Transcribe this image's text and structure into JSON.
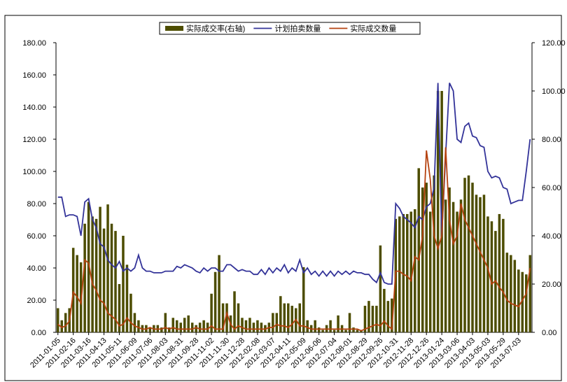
{
  "chart_data": {
    "type": "bar-line",
    "series": [
      {
        "name": "实际成交率(右轴)",
        "color": "#4d4d00",
        "axis": "y2",
        "kind": "bar",
        "values": [
          10,
          5,
          8,
          10,
          35,
          32,
          29,
          45,
          54,
          48,
          47,
          52,
          43,
          53,
          45,
          42,
          20,
          40,
          28,
          16,
          8,
          5,
          3,
          3,
          2,
          3,
          3,
          2,
          8,
          2,
          6,
          5,
          4,
          6,
          7,
          4,
          3,
          4,
          5,
          4,
          16,
          25,
          32,
          12,
          12,
          7,
          17,
          12,
          6,
          5,
          6,
          4,
          5,
          4,
          3,
          4,
          8,
          8,
          15,
          12,
          12,
          11,
          10,
          12,
          27,
          5,
          3,
          5,
          2,
          1,
          3,
          5,
          1,
          7,
          3,
          1,
          8,
          2,
          1,
          1,
          11,
          13,
          11,
          11,
          36,
          18,
          13,
          14,
          47,
          48,
          49,
          49,
          50,
          51,
          68,
          60,
          62,
          50,
          65,
          100,
          100,
          55,
          60,
          54,
          50,
          55,
          64,
          65,
          62,
          57,
          56,
          57,
          48,
          46,
          42,
          49,
          47,
          33,
          32,
          30,
          26,
          25,
          24,
          32
        ]
      },
      {
        "name": "计划拍卖数量",
        "color": "#333399",
        "kind": "line",
        "values": [
          84,
          84,
          72,
          73,
          73,
          72,
          60,
          81,
          83,
          70,
          65,
          55,
          53,
          45,
          42,
          40,
          44,
          38,
          40,
          38,
          40,
          48,
          40,
          38,
          38,
          37,
          37,
          37,
          38,
          38,
          38,
          41,
          40,
          42,
          41,
          40,
          38,
          37,
          40,
          38,
          40,
          40,
          38,
          38,
          42,
          42,
          40,
          38,
          39,
          38,
          38,
          36,
          36,
          39,
          36,
          40,
          37,
          40,
          38,
          42,
          37,
          40,
          38,
          45,
          37,
          40,
          36,
          38,
          35,
          38,
          35,
          38,
          35,
          38,
          36,
          38,
          36,
          38,
          37,
          37,
          36,
          36,
          33,
          31,
          37,
          31,
          30,
          30,
          80,
          77,
          72,
          70,
          68,
          65,
          72,
          70,
          78,
          80,
          90,
          155,
          60,
          110,
          155,
          150,
          120,
          118,
          128,
          130,
          122,
          121,
          116,
          115,
          100,
          96,
          97,
          96,
          90,
          89,
          80,
          81,
          82,
          82,
          100,
          120
        ]
      },
      {
        "name": "实际成交数量",
        "color": "#b5420f",
        "kind": "line",
        "values": [
          5,
          3,
          4,
          7,
          25,
          22,
          18,
          45,
          43,
          30,
          26,
          20,
          18,
          12,
          10,
          8,
          4,
          5,
          9,
          6,
          4,
          3,
          2,
          2,
          3,
          2,
          2,
          2,
          3,
          2,
          3,
          2,
          2,
          2,
          2,
          2,
          3,
          2,
          2,
          2,
          4,
          2,
          2,
          2,
          12,
          5,
          2,
          4,
          3,
          2,
          2,
          2,
          2,
          2,
          2,
          3,
          3,
          5,
          4,
          4,
          3,
          5,
          8,
          4,
          4,
          3,
          2,
          2,
          2,
          2,
          2,
          2,
          2,
          2,
          2,
          2,
          2,
          2,
          2,
          1,
          2,
          3,
          4,
          5,
          4,
          7,
          4,
          2,
          38,
          38,
          36,
          35,
          32,
          47,
          45,
          60,
          113,
          95,
          60,
          52,
          60,
          115,
          70,
          55,
          60,
          80,
          70,
          65,
          60,
          55,
          50,
          45,
          40,
          30,
          32,
          28,
          25,
          20,
          18,
          17,
          16,
          20,
          24,
          40
        ]
      }
    ],
    "categories": [
      "2011-01-05",
      null,
      null,
      null,
      "2011-02-16",
      null,
      null,
      null,
      "2011-03-16",
      null,
      null,
      null,
      "2011-04-13",
      null,
      null,
      null,
      "2011-05-11",
      null,
      null,
      null,
      "2011-06-09",
      null,
      null,
      null,
      "2011-07-06",
      null,
      null,
      null,
      "2011-08-03",
      null,
      null,
      null,
      "2011-08-31",
      null,
      null,
      null,
      "2011-09-28",
      null,
      null,
      null,
      "2011-11-02",
      null,
      null,
      null,
      "2011-11-30",
      null,
      null,
      null,
      "2011-12-28",
      null,
      null,
      null,
      "2012-02-08",
      null,
      null,
      null,
      "2012-03-07",
      null,
      null,
      null,
      "2012-04-11",
      null,
      null,
      null,
      "2012-05-09",
      null,
      null,
      null,
      "2012-06-06",
      null,
      null,
      null,
      "2012-07-04",
      null,
      null,
      null,
      "2012-08-01",
      null,
      null,
      null,
      "2012-08-29",
      null,
      null,
      null,
      "2012-09-26",
      null,
      null,
      null,
      "2012-10-31",
      null,
      null,
      null,
      "2012-11-28",
      null,
      null,
      null,
      "2012-12-26",
      null,
      null,
      null,
      "2013-01-24",
      null,
      null,
      null,
      "2013-03-06",
      null,
      null,
      null,
      "2013-04-03",
      null,
      null,
      null,
      "2013-05-03",
      null,
      null,
      null,
      "2013-05-29",
      null,
      null,
      null,
      "2013-07-03",
      null,
      null,
      null
    ],
    "ylim": [
      0,
      180
    ],
    "yticks": [
      {
        "value": 0,
        "label": "0.00"
      },
      {
        "value": 20,
        "label": "20.00"
      },
      {
        "value": 40,
        "label": "40.00"
      },
      {
        "value": 60,
        "label": "60.00"
      },
      {
        "value": 80,
        "label": "80.00"
      },
      {
        "value": 100,
        "label": "100.00"
      },
      {
        "value": 120,
        "label": "120.00"
      },
      {
        "value": 140,
        "label": "140.00"
      },
      {
        "value": 160,
        "label": "160.00"
      },
      {
        "value": 180,
        "label": "180.00"
      }
    ],
    "y2lim": [
      0,
      120
    ],
    "y2ticks": [
      {
        "value": 0,
        "label": "0.00"
      },
      {
        "value": 20,
        "label": "20.00"
      },
      {
        "value": 40,
        "label": "40.00"
      },
      {
        "value": 60,
        "label": "60.00"
      },
      {
        "value": 80,
        "label": "80.00"
      },
      {
        "value": 100,
        "label": "100.00"
      },
      {
        "value": 120,
        "label": "120.00"
      }
    ],
    "legend": "top"
  }
}
